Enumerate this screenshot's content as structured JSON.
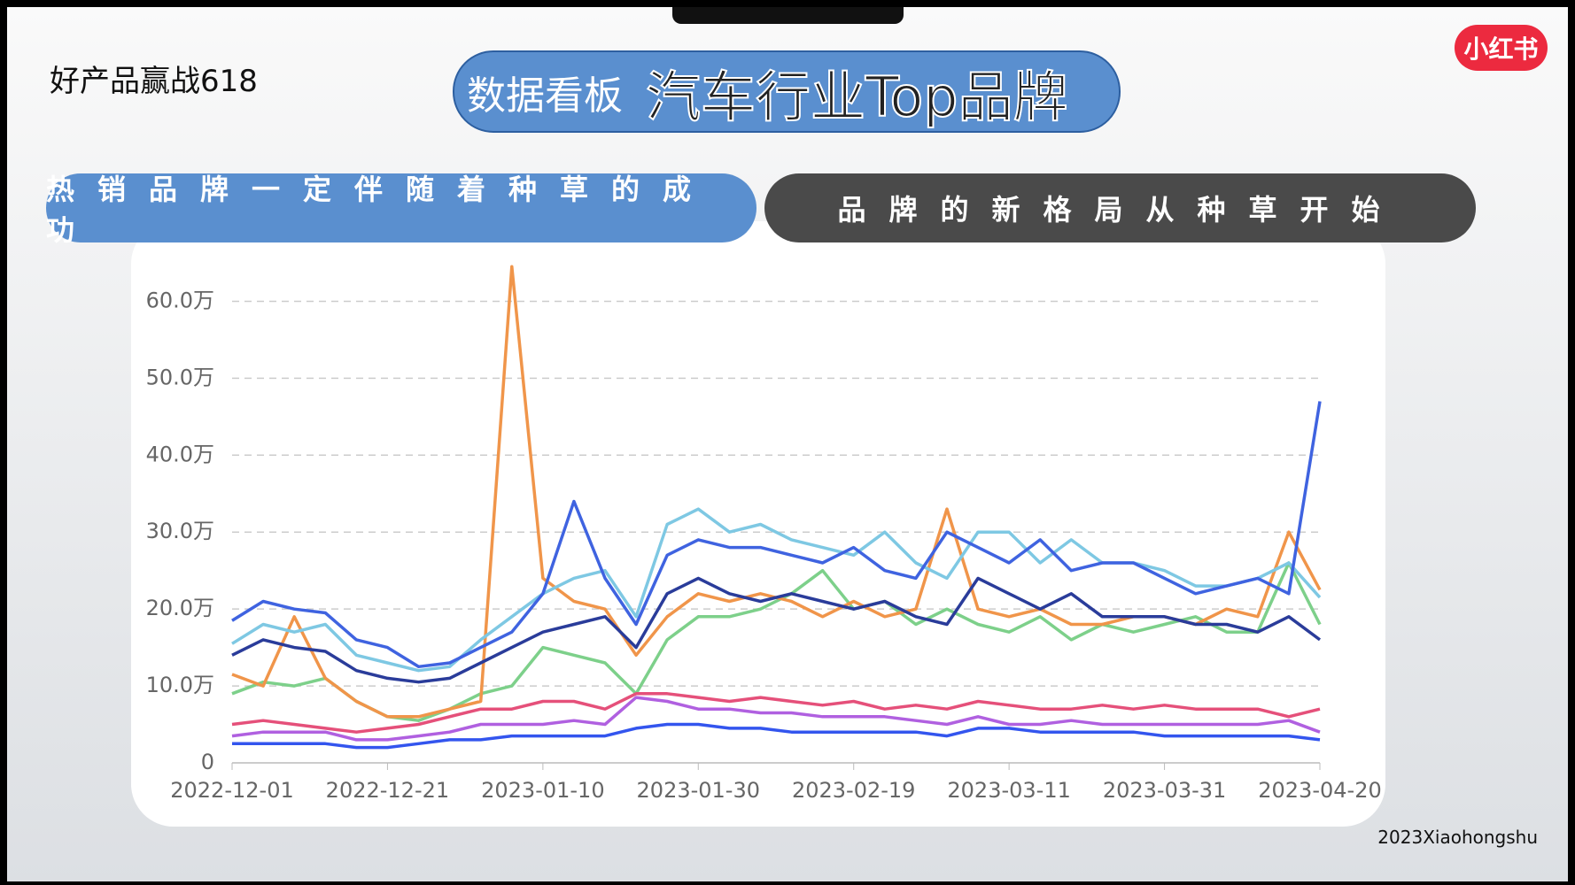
{
  "header": {
    "tagline": "好产品赢战618",
    "title_a": "数据看板",
    "title_b": "汽车行业Top品牌",
    "logo": "小红书"
  },
  "banners": {
    "left": "热销品牌一定伴随着种草的成功",
    "right": "品牌的新格局从种草开始"
  },
  "footer": "2023Xiaohongshu",
  "chart_data": {
    "type": "line",
    "grid": true,
    "x": [
      "2022-12-01",
      "2022-12-05",
      "2022-12-09",
      "2022-12-13",
      "2022-12-17",
      "2022-12-21",
      "2022-12-25",
      "2022-12-29",
      "2023-01-02",
      "2023-01-06",
      "2023-01-10",
      "2023-01-14",
      "2023-01-18",
      "2023-01-22",
      "2023-01-26",
      "2023-01-30",
      "2023-02-03",
      "2023-02-07",
      "2023-02-11",
      "2023-02-15",
      "2023-02-19",
      "2023-02-23",
      "2023-02-27",
      "2023-03-03",
      "2023-03-07",
      "2023-03-11",
      "2023-03-15",
      "2023-03-19",
      "2023-03-23",
      "2023-03-27",
      "2023-03-31",
      "2023-04-04",
      "2023-04-08",
      "2023-04-12",
      "2023-04-16",
      "2023-04-20"
    ],
    "xlim": [
      "2022-12-01",
      "2023-04-20"
    ],
    "xticks": [
      "2022-12-01",
      "2022-12-21",
      "2023-01-10",
      "2023-01-30",
      "2023-02-19",
      "2023-03-11",
      "2023-03-31",
      "2023-04-20"
    ],
    "ylim": [
      0,
      65
    ],
    "yticks": [
      0,
      {
        "value": 10,
        "label": "10.0万"
      },
      {
        "value": 20,
        "label": "20.0万"
      },
      {
        "value": 30,
        "label": "30.0万"
      },
      {
        "value": 40,
        "label": "40.0万"
      },
      {
        "value": 50,
        "label": "50.0万"
      },
      {
        "value": 60,
        "label": "60.0万"
      }
    ],
    "series": [
      {
        "color": "#7dd08a",
        "values": [
          9,
          10.5,
          10,
          11,
          8,
          6,
          5.5,
          7,
          9,
          10,
          15,
          14,
          13,
          9,
          16,
          19,
          19,
          20,
          22,
          25,
          20,
          21,
          18,
          20,
          18,
          17,
          19,
          16,
          18,
          17,
          18,
          19,
          17,
          17,
          26,
          18
        ]
      },
      {
        "color": "#f0954a",
        "values": [
          11.5,
          10,
          19,
          11,
          8,
          6,
          6,
          7,
          8,
          64.5,
          24,
          21,
          20,
          14,
          19,
          22,
          21,
          22,
          21,
          19,
          21,
          19,
          20,
          33,
          20,
          19,
          20,
          18,
          18,
          19,
          19,
          18,
          20,
          19,
          30,
          22.5
        ]
      },
      {
        "color": "#7ec8e3",
        "values": [
          15.5,
          18,
          17,
          18,
          14,
          13,
          12,
          12.5,
          16,
          19,
          22,
          24,
          25,
          19,
          31,
          33,
          30,
          31,
          29,
          28,
          27,
          30,
          26,
          24,
          30,
          30,
          26,
          29,
          26,
          26,
          25,
          23,
          23,
          24,
          26,
          21.5
        ]
      },
      {
        "color": "#2a3c9a",
        "values": [
          14,
          16,
          15,
          14.5,
          12,
          11,
          10.5,
          11,
          13,
          15,
          17,
          18,
          19,
          15,
          22,
          24,
          22,
          21,
          22,
          21,
          20,
          21,
          19,
          18,
          24,
          22,
          20,
          22,
          19,
          19,
          19,
          18,
          18,
          17,
          19,
          16
        ]
      },
      {
        "color": "#3f63e0",
        "values": [
          18.5,
          21,
          20,
          19.5,
          16,
          15,
          12.5,
          13,
          15,
          17,
          22,
          34,
          24,
          18,
          27,
          29,
          28,
          28,
          27,
          26,
          28,
          25,
          24,
          30,
          28,
          26,
          29,
          25,
          26,
          26,
          24,
          22,
          23,
          24,
          22,
          47
        ]
      },
      {
        "color": "#e5507a",
        "values": [
          5,
          5.5,
          5,
          4.5,
          4,
          4.5,
          5,
          6,
          7,
          7,
          8,
          8,
          7,
          9,
          9,
          8.5,
          8,
          8.5,
          8,
          7.5,
          8,
          7,
          7.5,
          7,
          8,
          7.5,
          7,
          7,
          7.5,
          7,
          7.5,
          7,
          7,
          7,
          6,
          7
        ]
      },
      {
        "color": "#b060e0",
        "values": [
          3.5,
          4,
          4,
          4,
          3,
          3,
          3.5,
          4,
          5,
          5,
          5,
          5.5,
          5,
          8.5,
          8,
          7,
          7,
          6.5,
          6.5,
          6,
          6,
          6,
          5.5,
          5,
          6,
          5,
          5,
          5.5,
          5,
          5,
          5,
          5,
          5,
          5,
          5.5,
          4
        ]
      },
      {
        "color": "#3355ee",
        "values": [
          2.5,
          2.5,
          2.5,
          2.5,
          2,
          2,
          2.5,
          3,
          3,
          3.5,
          3.5,
          3.5,
          3.5,
          4.5,
          5,
          5,
          4.5,
          4.5,
          4,
          4,
          4,
          4,
          4,
          3.5,
          4.5,
          4.5,
          4,
          4,
          4,
          4,
          3.5,
          3.5,
          3.5,
          3.5,
          3.5,
          3
        ]
      }
    ]
  }
}
